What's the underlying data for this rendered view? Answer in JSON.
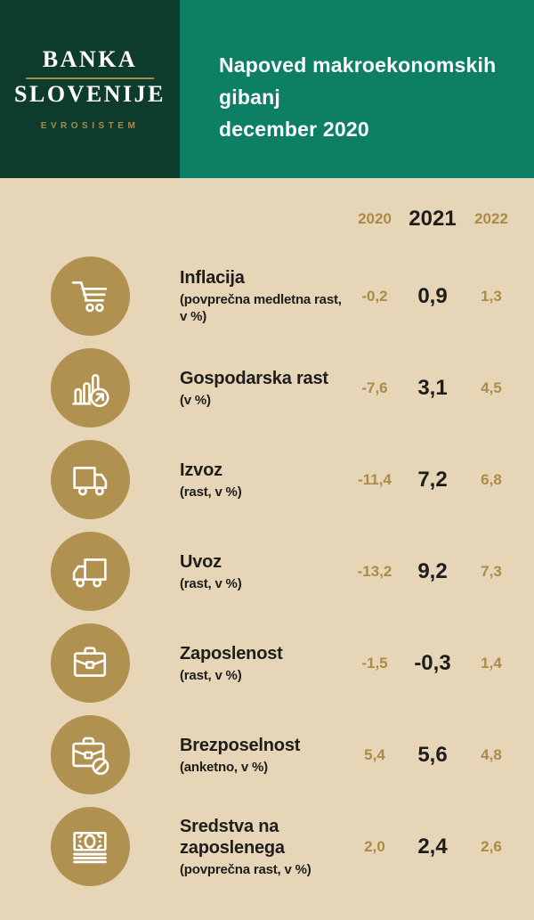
{
  "colors": {
    "dark_green": "#0d3c2c",
    "teal_green": "#0c7f64",
    "beige": "#e6d5b6",
    "gold_text": "#ab8b48",
    "circle_gold": "#b19150",
    "dark_text": "#1d1d1b",
    "logo_gold": "#a98a4e"
  },
  "header": {
    "logo": {
      "line1": "BANKA",
      "line2": "SLOVENIJE",
      "subtitle": "EVROSISTEM"
    },
    "title_lines": [
      "Napoved makroekonomskih",
      "gibanj",
      "december 2020"
    ]
  },
  "table": {
    "year_columns": [
      "2020",
      "2021",
      "2022"
    ],
    "rows": [
      {
        "icon": "shopping-cart-icon",
        "title": "Inflacija",
        "subtitle": "(povprečna medletna rast, v %)",
        "values": [
          "-0,2",
          "0,9",
          "1,3"
        ]
      },
      {
        "icon": "bar-chart-growth-icon",
        "title": "Gospodarska rast",
        "subtitle": "(v %)",
        "values": [
          "-7,6",
          "3,1",
          "4,5"
        ]
      },
      {
        "icon": "truck-export-icon",
        "title": "Izvoz",
        "subtitle": "(rast, v %)",
        "values": [
          "-11,4",
          "7,2",
          "6,8"
        ]
      },
      {
        "icon": "truck-import-icon",
        "title": "Uvoz",
        "subtitle": "(rast, v %)",
        "values": [
          "-13,2",
          "9,2",
          "7,3"
        ]
      },
      {
        "icon": "briefcase-icon",
        "title": "Zaposlenost",
        "subtitle": "(rast, v %)",
        "values": [
          "-1,5",
          "-0,3",
          "1,4"
        ]
      },
      {
        "icon": "briefcase-prohibited-icon",
        "title": "Brezposelnost",
        "subtitle": "(anketno, v %)",
        "values": [
          "5,4",
          "5,6",
          "4,8"
        ]
      },
      {
        "icon": "banknotes-icon",
        "title": "Sredstva na zaposlenega",
        "subtitle": "(povprečna rast, v %)",
        "values": [
          "2,0",
          "2,4",
          "2,6"
        ]
      }
    ]
  },
  "chart_data": {
    "type": "table",
    "title": "Napoved makroekonomskih gibanj, december 2020",
    "columns": [
      "2020",
      "2021",
      "2022"
    ],
    "rows": [
      {
        "indicator": "Inflacija (povprečna medletna rast, v %)",
        "values": [
          -0.2,
          0.9,
          1.3
        ]
      },
      {
        "indicator": "Gospodarska rast (v %)",
        "values": [
          -7.6,
          3.1,
          4.5
        ]
      },
      {
        "indicator": "Izvoz (rast, v %)",
        "values": [
          -11.4,
          7.2,
          6.8
        ]
      },
      {
        "indicator": "Uvoz (rast, v %)",
        "values": [
          -13.2,
          9.2,
          7.3
        ]
      },
      {
        "indicator": "Zaposlenost (rast, v %)",
        "values": [
          -1.5,
          -0.3,
          1.4
        ]
      },
      {
        "indicator": "Brezposelnost (anketno, v %)",
        "values": [
          5.4,
          5.6,
          4.8
        ]
      },
      {
        "indicator": "Sredstva na zaposlenega (povprečna rast, v %)",
        "values": [
          2.0,
          2.4,
          2.6
        ]
      }
    ]
  }
}
